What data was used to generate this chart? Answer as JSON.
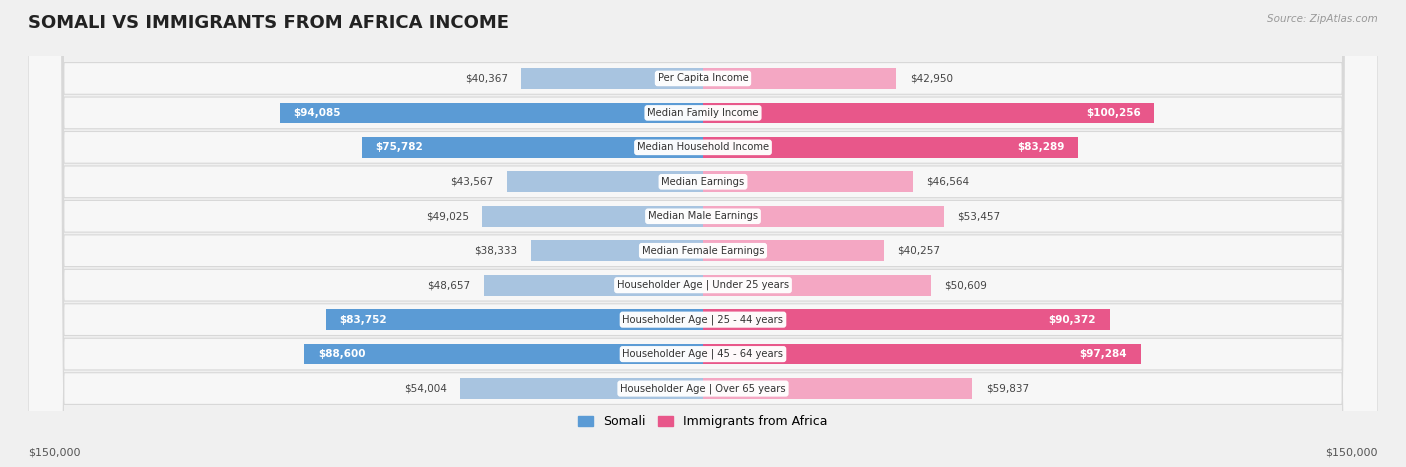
{
  "title": "SOMALI VS IMMIGRANTS FROM AFRICA INCOME",
  "source": "Source: ZipAtlas.com",
  "categories": [
    "Per Capita Income",
    "Median Family Income",
    "Median Household Income",
    "Median Earnings",
    "Median Male Earnings",
    "Median Female Earnings",
    "Householder Age | Under 25 years",
    "Householder Age | 25 - 44 years",
    "Householder Age | 45 - 64 years",
    "Householder Age | Over 65 years"
  ],
  "somali_values": [
    40367,
    94085,
    75782,
    43567,
    49025,
    38333,
    48657,
    83752,
    88600,
    54004
  ],
  "africa_values": [
    42950,
    100256,
    83289,
    46564,
    53457,
    40257,
    50609,
    90372,
    97284,
    59837
  ],
  "somali_labels": [
    "$40,367",
    "$94,085",
    "$75,782",
    "$43,567",
    "$49,025",
    "$38,333",
    "$48,657",
    "$83,752",
    "$88,600",
    "$54,004"
  ],
  "africa_labels": [
    "$42,950",
    "$100,256",
    "$83,289",
    "$46,564",
    "$53,457",
    "$40,257",
    "$50,609",
    "$90,372",
    "$97,284",
    "$59,837"
  ],
  "somali_color_normal": "#a8c4e0",
  "somali_color_large": "#5b9bd5",
  "africa_color_normal": "#f4a7c3",
  "africa_color_large": "#e8578a",
  "axis_max": 150000,
  "background_color": "#f0f0f0",
  "row_bg": "#f7f7f7",
  "row_border": "#d8d8d8",
  "legend_somali": "Somali",
  "legend_africa": "Immigrants from Africa",
  "bottom_label_left": "$150,000",
  "bottom_label_right": "$150,000",
  "threshold": 60000
}
